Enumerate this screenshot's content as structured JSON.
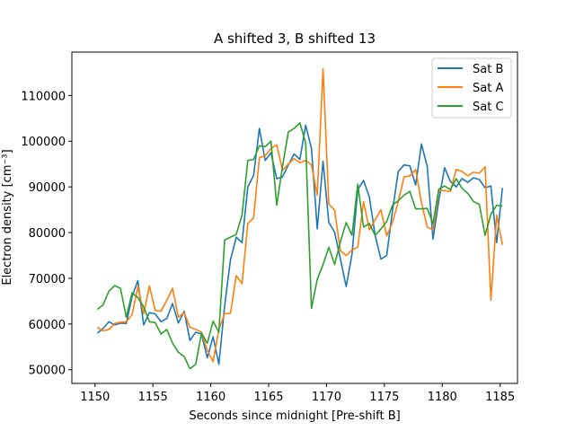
{
  "chart_data": {
    "type": "line",
    "title": "A shifted 3, B shifted 13",
    "xlabel": "Seconds since midnight [Pre-shift B]",
    "ylabel": "Electron density [cm⁻³]",
    "xlim": [
      1148,
      1186.5
    ],
    "ylim": [
      47000,
      119500
    ],
    "xticks": [
      1150,
      1155,
      1160,
      1165,
      1170,
      1175,
      1180,
      1185
    ],
    "yticks": [
      50000,
      60000,
      70000,
      80000,
      90000,
      100000,
      110000
    ],
    "grid": false,
    "legend_position": "top-right",
    "series": [
      {
        "name": "Sat B",
        "color": "#1f77b4",
        "x": [
          1150.2,
          1150.7,
          1151.2,
          1151.7,
          1152.2,
          1152.7,
          1153.2,
          1153.7,
          1154.2,
          1154.7,
          1155.2,
          1155.7,
          1156.2,
          1156.7,
          1157.2,
          1157.7,
          1158.2,
          1158.7,
          1159.2,
          1159.7,
          1160.2,
          1160.7,
          1161.2,
          1161.7,
          1162.2,
          1162.7,
          1163.2,
          1163.7,
          1164.2,
          1164.7,
          1165.2,
          1165.7,
          1166.2,
          1166.7,
          1167.2,
          1167.7,
          1168.2,
          1168.7,
          1169.2,
          1169.7,
          1170.2,
          1170.7,
          1171.2,
          1171.7,
          1172.2,
          1172.7,
          1173.2,
          1173.7,
          1174.2,
          1174.7,
          1175.2,
          1175.7,
          1176.2,
          1176.7,
          1177.2,
          1177.7,
          1178.2,
          1178.7,
          1179.2,
          1179.7,
          1180.2,
          1180.7,
          1181.2,
          1181.7,
          1182.2,
          1182.7,
          1183.2,
          1183.7,
          1184.2,
          1184.7,
          1185.2
        ],
        "values": [
          58000,
          59000,
          60500,
          59800,
          60200,
          60100,
          66000,
          69500,
          59800,
          62500,
          62200,
          60500,
          61200,
          64500,
          60200,
          62800,
          56400,
          58200,
          57800,
          52600,
          57200,
          51200,
          64000,
          74000,
          79000,
          77800,
          90000,
          92500,
          102800,
          95800,
          97500,
          91800,
          92200,
          94800,
          97200,
          96000,
          103500,
          98400,
          80800,
          95600,
          82200,
          80100,
          74200,
          68200,
          75200,
          89400,
          91400,
          87800,
          79400,
          74200,
          75000,
          84800,
          93400,
          94800,
          94600,
          90400,
          99400,
          94500,
          78600,
          87000,
          94200,
          91200,
          90000,
          91800,
          91000,
          92000,
          91600,
          89800,
          90200,
          77800,
          89800
        ]
      },
      {
        "name": "Sat A",
        "color": "#ff7f0e",
        "x": [
          1150.2,
          1150.7,
          1151.2,
          1151.7,
          1152.2,
          1152.7,
          1153.2,
          1153.7,
          1154.2,
          1154.7,
          1155.2,
          1155.7,
          1156.2,
          1156.7,
          1157.2,
          1157.7,
          1158.2,
          1158.7,
          1159.2,
          1159.7,
          1160.2,
          1160.7,
          1161.2,
          1161.7,
          1162.2,
          1162.7,
          1163.2,
          1163.7,
          1164.2,
          1164.7,
          1165.2,
          1165.7,
          1166.2,
          1166.7,
          1167.2,
          1167.7,
          1168.2,
          1168.7,
          1169.2,
          1169.7,
          1170.2,
          1170.7,
          1171.2,
          1171.7,
          1172.2,
          1172.7,
          1173.2,
          1173.7,
          1174.2,
          1174.7,
          1175.2,
          1175.7,
          1176.2,
          1176.7,
          1177.2,
          1177.7,
          1178.2,
          1178.7,
          1179.2,
          1179.7,
          1180.2,
          1180.7,
          1181.2,
          1181.7,
          1182.2,
          1182.7,
          1183.2,
          1183.7,
          1184.2,
          1184.7,
          1185.2
        ],
        "values": [
          59300,
          58500,
          58800,
          60100,
          60400,
          60500,
          62000,
          68200,
          62200,
          68300,
          63000,
          62800,
          65200,
          67800,
          61500,
          62500,
          59300,
          58800,
          58200,
          54200,
          51800,
          58800,
          62300,
          62300,
          70600,
          68800,
          82000,
          83200,
          96400,
          96800,
          98400,
          99200,
          93600,
          95000,
          96200,
          95300,
          95800,
          94800,
          88200,
          115800,
          86200,
          84900,
          76000,
          75000,
          76200,
          76800,
          86800,
          80600,
          82800,
          85000,
          79300,
          82200,
          86800,
          92200,
          92400,
          93800,
          86600,
          81200,
          80600,
          89200,
          89200,
          89000,
          93800,
          93400,
          92400,
          93200,
          93000,
          94400,
          65200,
          83800,
          77300
        ]
      },
      {
        "name": "Sat C",
        "color": "#2ca02c",
        "x": [
          1150.2,
          1150.7,
          1151.2,
          1151.7,
          1152.2,
          1152.7,
          1153.2,
          1153.7,
          1154.2,
          1154.7,
          1155.2,
          1155.7,
          1156.2,
          1156.7,
          1157.2,
          1157.7,
          1158.2,
          1158.7,
          1159.2,
          1159.7,
          1160.2,
          1160.7,
          1161.2,
          1161.7,
          1162.2,
          1162.7,
          1163.2,
          1163.7,
          1164.2,
          1164.7,
          1165.2,
          1165.7,
          1166.2,
          1166.7,
          1167.2,
          1167.7,
          1168.2,
          1168.7,
          1169.2,
          1169.7,
          1170.2,
          1170.7,
          1171.2,
          1171.7,
          1172.2,
          1172.7,
          1173.2,
          1173.7,
          1174.2,
          1174.7,
          1175.2,
          1175.7,
          1176.2,
          1176.7,
          1177.2,
          1177.7,
          1178.2,
          1178.7,
          1179.2,
          1179.7,
          1180.2,
          1180.7,
          1181.2,
          1181.7,
          1182.2,
          1182.7,
          1183.2,
          1183.7,
          1184.2,
          1184.7,
          1185.2
        ],
        "values": [
          63200,
          64200,
          67200,
          68400,
          67800,
          61500,
          66800,
          65800,
          63800,
          60500,
          60300,
          57800,
          58800,
          55800,
          53800,
          52900,
          50200,
          51200,
          58000,
          55800,
          60600,
          58200,
          78400,
          79000,
          79600,
          83800,
          95800,
          96000,
          99000,
          98800,
          100000,
          86000,
          94500,
          102000,
          102800,
          104000,
          99600,
          63400,
          69800,
          73000,
          76800,
          73000,
          78000,
          82200,
          79400,
          90600,
          81200,
          82000,
          79400,
          80800,
          82400,
          86000,
          87000,
          88200,
          89000,
          85200,
          85200,
          85300,
          82000,
          89500,
          90200,
          89400,
          91800,
          89700,
          88600,
          86800,
          86200,
          79400,
          84000,
          86000,
          85800
        ]
      }
    ]
  }
}
